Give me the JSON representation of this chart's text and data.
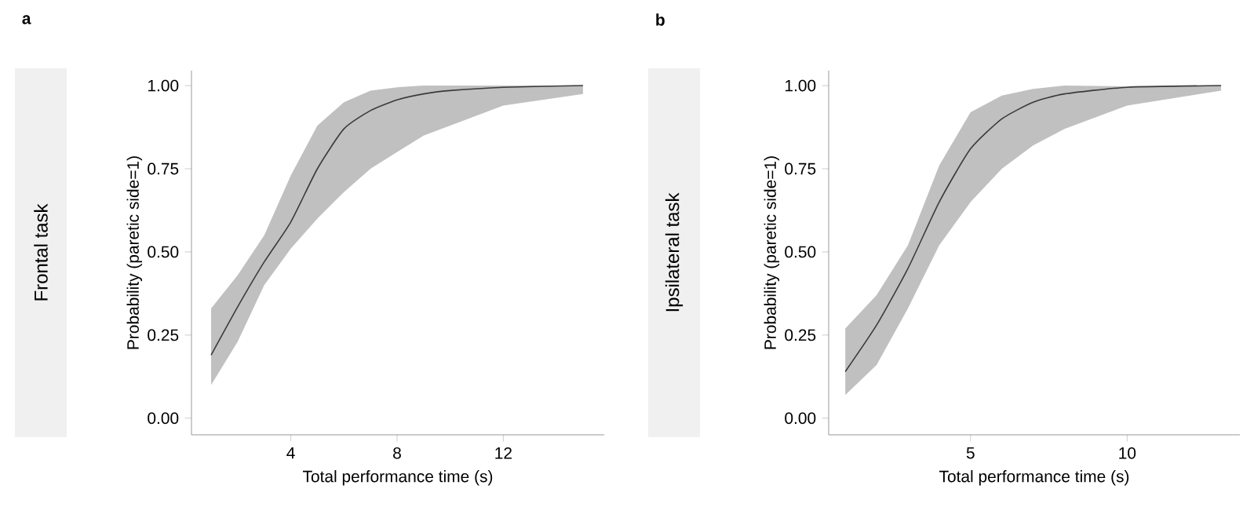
{
  "chart_data": [
    {
      "type": "line",
      "annotations": [
        "a",
        "Frontal task"
      ],
      "xlabel": "Total performance time (s)",
      "ylabel": "Probability (paretic side=1)",
      "x": [
        1,
        2,
        3,
        4,
        5,
        6,
        7,
        8,
        9,
        10,
        12,
        15
      ],
      "series": [
        {
          "color": "#3a3a3a",
          "values": [
            0.19,
            0.335,
            0.47,
            0.59,
            0.75,
            0.87,
            0.925,
            0.957,
            0.975,
            0.985,
            0.995,
            1.0
          ],
          "lower": [
            0.1,
            0.23,
            0.4,
            0.51,
            0.6,
            0.68,
            0.75,
            0.8,
            0.85,
            0.88,
            0.94,
            0.975
          ],
          "upper": [
            0.33,
            0.43,
            0.55,
            0.73,
            0.88,
            0.95,
            0.985,
            0.995,
            1.0,
            1.0,
            1.0,
            1.0
          ]
        }
      ],
      "xlim": [
        0.26,
        15.8
      ],
      "ylim": [
        -0.05,
        1.045
      ],
      "xticks": [
        4,
        8,
        12
      ],
      "yticks": [
        {
          "value": 0,
          "label": "0.00"
        },
        {
          "value": 0.25,
          "label": "0.25"
        },
        {
          "value": 0.5,
          "label": "0.50"
        },
        {
          "value": 0.75,
          "label": "0.75"
        },
        {
          "value": 1,
          "label": "1.00"
        }
      ]
    },
    {
      "type": "line",
      "annotations": [
        "b",
        "Ipsilateral task"
      ],
      "xlabel": "Total performance time (s)",
      "ylabel": "Probability (paretic side=1)",
      "x": [
        1,
        2,
        3,
        4,
        5,
        6,
        7,
        8,
        10,
        13
      ],
      "series": [
        {
          "color": "#3a3a3a",
          "values": [
            0.14,
            0.28,
            0.45,
            0.65,
            0.81,
            0.9,
            0.95,
            0.975,
            0.995,
            1.0
          ],
          "lower": [
            0.07,
            0.16,
            0.33,
            0.52,
            0.65,
            0.75,
            0.82,
            0.87,
            0.94,
            0.985
          ],
          "upper": [
            0.27,
            0.37,
            0.52,
            0.76,
            0.92,
            0.97,
            0.99,
            1.0,
            0.998,
            1.0
          ]
        }
      ],
      "xlim": [
        0.47,
        13.6
      ],
      "ylim": [
        -0.05,
        1.045
      ],
      "xticks": [
        5,
        10
      ],
      "yticks": [
        {
          "value": 0,
          "label": "0.00"
        },
        {
          "value": 0.25,
          "label": "0.25"
        },
        {
          "value": 0.5,
          "label": "0.50"
        },
        {
          "value": 0.75,
          "label": "0.75"
        },
        {
          "value": 1,
          "label": "1.00"
        }
      ]
    }
  ]
}
